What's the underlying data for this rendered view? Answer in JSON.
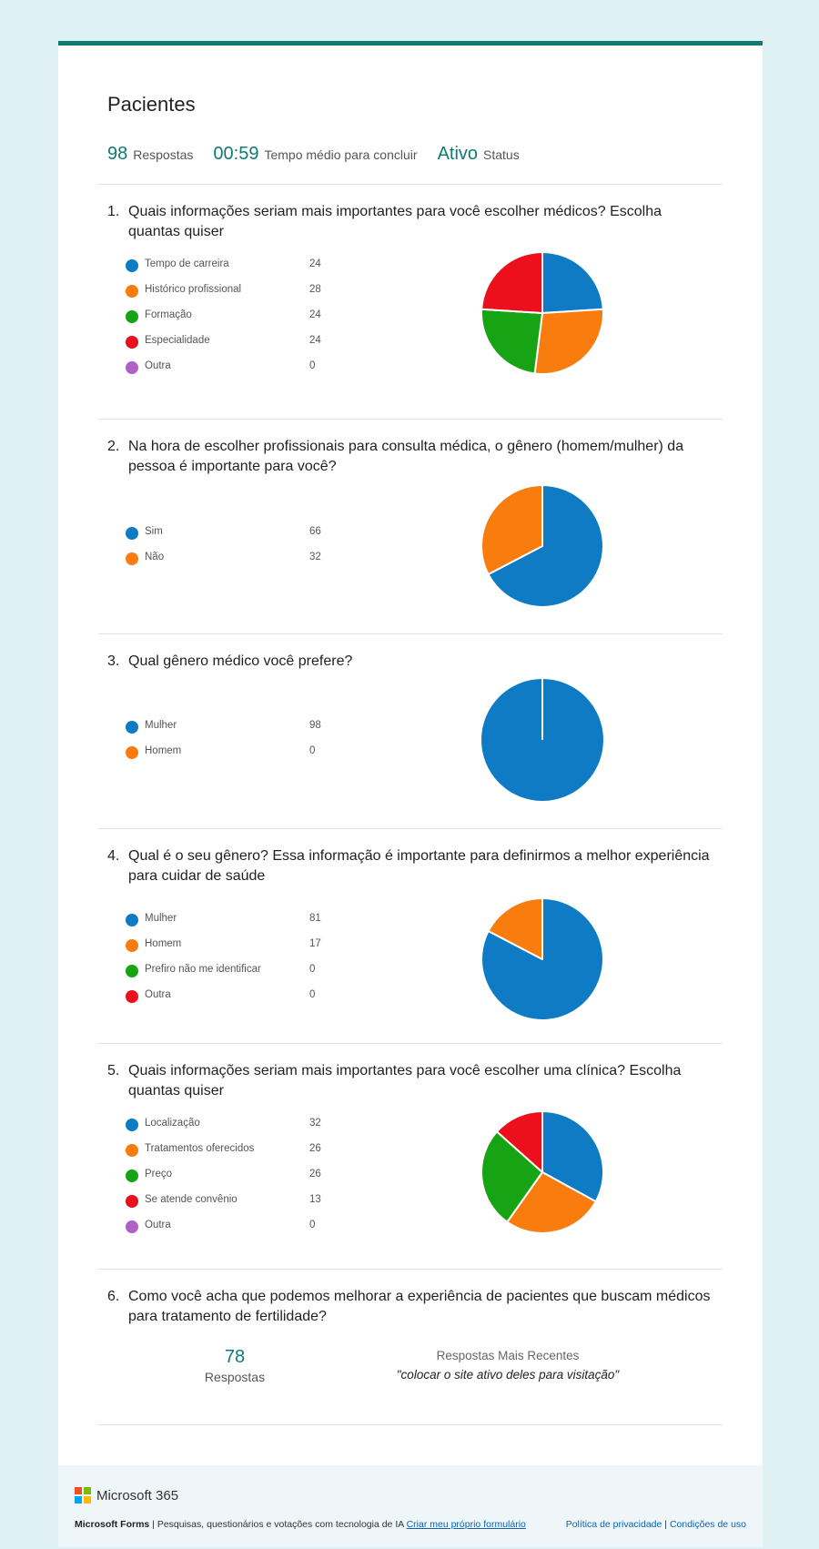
{
  "form": {
    "title": "Pacientes",
    "stats": {
      "responses": "98",
      "responses_label": "Respostas",
      "avg_time": "00:59",
      "avg_time_label": "Tempo médio para concluir",
      "status": "Ativo",
      "status_label": "Status"
    }
  },
  "colors": [
    "#0f7bc4",
    "#f97c0f",
    "#17a414",
    "#ec0f1c",
    "#b060c8"
  ],
  "questions": [
    {
      "num": "1.",
      "text": "Quais informações seriam mais importantes para você escolher médicos? Escolha quantas quiser",
      "options": [
        {
          "label": "Tempo de carreira",
          "count": "24"
        },
        {
          "label": "Histórico profissional",
          "count": "28"
        },
        {
          "label": "Formação",
          "count": "24"
        },
        {
          "label": "Especialidade",
          "count": "24"
        },
        {
          "label": "Outra",
          "count": "0"
        }
      ]
    },
    {
      "num": "2.",
      "text": "Na hora de escolher profissionais para consulta médica, o gênero (homem/mulher) da pessoa é importante para você?",
      "options": [
        {
          "label": "Sim",
          "count": "66"
        },
        {
          "label": "Não",
          "count": "32"
        }
      ]
    },
    {
      "num": "3.",
      "text": "Qual gênero médico você prefere?",
      "options": [
        {
          "label": "Mulher",
          "count": "98"
        },
        {
          "label": "Homem",
          "count": "0"
        }
      ]
    },
    {
      "num": "4.",
      "text": "Qual é o seu gênero? Essa informação é importante para definirmos a melhor experiência para cuidar de saúde",
      "options": [
        {
          "label": "Mulher",
          "count": "81"
        },
        {
          "label": "Homem",
          "count": "17"
        },
        {
          "label": "Prefiro não me identificar",
          "count": "0"
        },
        {
          "label": "Outra",
          "count": "0"
        }
      ]
    },
    {
      "num": "5.",
      "text": "Quais informações seriam mais importantes para você escolher uma clínica? Escolha quantas quiser",
      "options": [
        {
          "label": "Localização",
          "count": "32"
        },
        {
          "label": "Tratamentos oferecidos",
          "count": "26"
        },
        {
          "label": "Preço",
          "count": "26"
        },
        {
          "label": "Se atende convênio",
          "count": "13"
        },
        {
          "label": "Outra",
          "count": "0"
        }
      ]
    },
    {
      "num": "6.",
      "text": "Como você acha que podemos melhorar a experiência de pacientes que buscam médicos para tratamento de fertilidade?",
      "responses": "78",
      "responses_label": "Respostas",
      "recent_label": "Respostas Mais Recentes",
      "recent_text": "\"colocar o site ativo deles para visitação\""
    }
  ],
  "chart_data": [
    {
      "type": "pie",
      "categories": [
        "Tempo de carreira",
        "Histórico profissional",
        "Formação",
        "Especialidade",
        "Outra"
      ],
      "values": [
        24,
        28,
        24,
        24,
        0
      ]
    },
    {
      "type": "pie",
      "categories": [
        "Sim",
        "Não"
      ],
      "values": [
        66,
        32
      ]
    },
    {
      "type": "pie",
      "categories": [
        "Mulher",
        "Homem"
      ],
      "values": [
        98,
        0
      ]
    },
    {
      "type": "pie",
      "categories": [
        "Mulher",
        "Homem",
        "Prefiro não me identificar",
        "Outra"
      ],
      "values": [
        81,
        17,
        0,
        0
      ]
    },
    {
      "type": "pie",
      "categories": [
        "Localização",
        "Tratamentos oferecidos",
        "Preço",
        "Se atende convênio",
        "Outra"
      ],
      "values": [
        32,
        26,
        26,
        13,
        0
      ]
    }
  ],
  "footer": {
    "brand": "Microsoft 365",
    "product": "Microsoft Forms",
    "tagline": " | Pesquisas, questionários e votações com tecnologia de IA ",
    "create_link": "Criar meu próprio formulário",
    "privacy_link": "Política de privacidade",
    "separator": " | ",
    "terms_link": "Condições de uso"
  }
}
